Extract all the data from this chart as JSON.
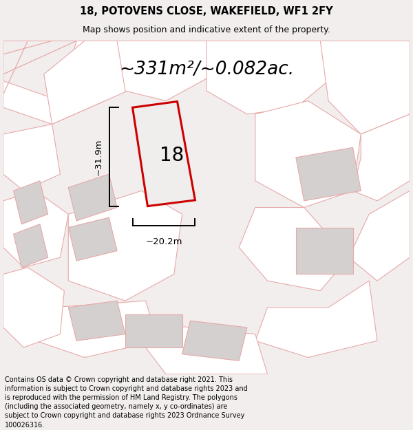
{
  "title_line1": "18, POTOVENS CLOSE, WAKEFIELD, WF1 2FY",
  "title_line2": "Map shows position and indicative extent of the property.",
  "area_text": "~331m²/~0.082ac.",
  "dim_width": "~20.2m",
  "dim_height": "~31.9m",
  "number_label": "18",
  "footer_text": "Contains OS data © Crown copyright and database right 2021. This information is subject to Crown copyright and database rights 2023 and is reproduced with the permission of HM Land Registry. The polygons (including the associated geometry, namely x, y co-ordinates) are subject to Crown copyright and database rights 2023 Ordnance Survey 100026316.",
  "bg_color": "#f2eeee",
  "map_bg": "#ffffff",
  "plot_fill": "#f0eded",
  "plot_outline": "#cc0000",
  "neighbour_fill": "#d4d0d0",
  "neighbour_outline": "#e8a8a8",
  "title_fontsize": 10.5,
  "subtitle_fontsize": 9,
  "area_fontsize": 19,
  "number_fontsize": 20,
  "dim_fontsize": 9.5,
  "footer_fontsize": 7.0
}
